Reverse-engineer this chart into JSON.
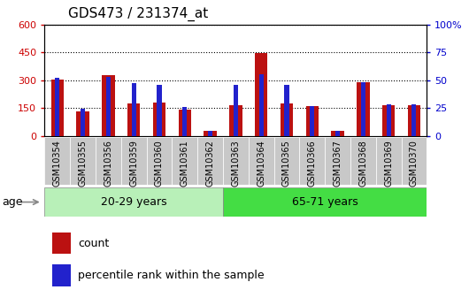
{
  "title": "GDS473 / 231374_at",
  "samples": [
    "GSM10354",
    "GSM10355",
    "GSM10356",
    "GSM10359",
    "GSM10360",
    "GSM10361",
    "GSM10362",
    "GSM10363",
    "GSM10364",
    "GSM10365",
    "GSM10366",
    "GSM10367",
    "GSM10368",
    "GSM10369",
    "GSM10370"
  ],
  "counts": [
    305,
    130,
    325,
    175,
    180,
    140,
    25,
    165,
    445,
    175,
    160,
    25,
    290,
    165,
    165
  ],
  "percentiles": [
    52,
    24,
    53,
    47,
    46,
    26,
    4,
    46,
    55,
    46,
    27,
    4,
    48,
    28,
    28
  ],
  "groups": [
    {
      "label": "20-29 years",
      "start": 0,
      "end": 7,
      "color": "#b8f0b8"
    },
    {
      "label": "65-71 years",
      "start": 7,
      "end": 15,
      "color": "#44dd44"
    }
  ],
  "ylim_left": [
    0,
    600
  ],
  "ylim_right": [
    0,
    100
  ],
  "yticks_left": [
    0,
    150,
    300,
    450,
    600
  ],
  "yticks_right": [
    0,
    25,
    50,
    75,
    100
  ],
  "bar_color_count": "#bb1111",
  "bar_color_pct": "#2222cc",
  "bg_plot": "#ffffff",
  "tick_bg": "#c8c8c8",
  "left_tick_color": "#cc0000",
  "right_tick_color": "#0000cc",
  "legend_count_label": "count",
  "legend_pct_label": "percentile rank within the sample",
  "figsize": [
    5.3,
    3.45
  ],
  "dpi": 100
}
